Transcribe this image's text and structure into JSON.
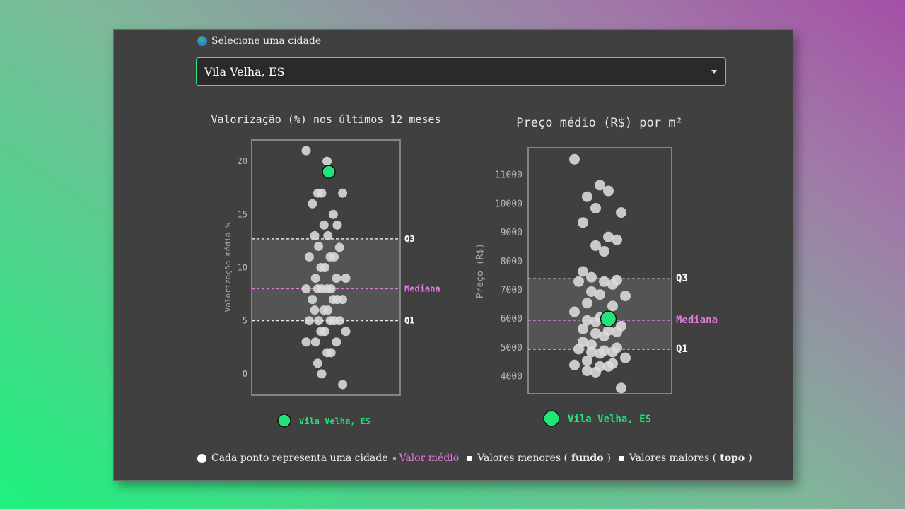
{
  "selector": {
    "label": "Selecione uma cidade",
    "value": "Vila Velha, ES",
    "icon": "globe-icon"
  },
  "legend": {
    "points": "Cada ponto representa uma cidade",
    "mean": "Valor médio",
    "lower_prefix": "Valores menores (",
    "lower_bold": "fundo",
    "upper_prefix": "Valores maiores (",
    "upper_bold": "topo",
    "close": ")"
  },
  "colors": {
    "highlight": "#22e57a",
    "median": "#e079e0",
    "point": "#dcdcdc"
  },
  "chart_data": [
    {
      "type": "scatter",
      "title": "Valorização (%) nos últimos 12 meses",
      "ylabel": "Valorização média %",
      "yticks": [
        0,
        5,
        10,
        15,
        20
      ],
      "ylim": [
        -2,
        22
      ],
      "q1": 5,
      "median": 8,
      "q3": 12.7,
      "q1_label": "Q1",
      "median_label": "Mediana",
      "q3_label": "Q3",
      "highlight": {
        "name": "Vila Velha, ES",
        "value": 19
      },
      "values": [
        21,
        20,
        19,
        17,
        17,
        17,
        16,
        15,
        14,
        14,
        13,
        13,
        12,
        11.9,
        11,
        11,
        11,
        10,
        10,
        9,
        9,
        9,
        8,
        8,
        8,
        8,
        8,
        7,
        7,
        7,
        7,
        6,
        6,
        6,
        5,
        5,
        5,
        5,
        5,
        4,
        4,
        4,
        3,
        3,
        3,
        2,
        2,
        1,
        0,
        -1
      ]
    },
    {
      "type": "scatter",
      "title": "Preço médio (R$) por m²",
      "ylabel": "Preço (R$)",
      "yticks": [
        4000,
        5000,
        6000,
        7000,
        8000,
        9000,
        10000,
        11000
      ],
      "ylim": [
        3400,
        11950
      ],
      "q1": 4950,
      "median": 5950,
      "q3": 7400,
      "q1_label": "Q1",
      "median_label": "Mediana",
      "q3_label": "Q3",
      "highlight": {
        "name": "Vila Velha, ES",
        "value": 6000
      },
      "values": [
        11550,
        10650,
        10450,
        10250,
        9850,
        9700,
        9350,
        8850,
        8750,
        8550,
        8350,
        7650,
        7450,
        7350,
        7300,
        7300,
        7200,
        6950,
        6850,
        6800,
        6550,
        6450,
        6250,
        6050,
        5950,
        5950,
        5900,
        5750,
        5650,
        5600,
        5550,
        5500,
        5400,
        5200,
        5100,
        5000,
        4950,
        4900,
        4850,
        4850,
        4800,
        4650,
        4550,
        4450,
        4400,
        4350,
        4350,
        4200,
        4150,
        3600
      ]
    }
  ]
}
